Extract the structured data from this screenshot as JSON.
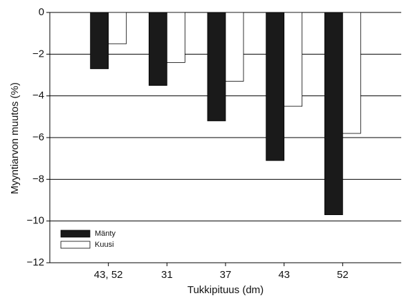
{
  "chart_data": {
    "type": "bar",
    "x_label": "Tukkipituus (dm)",
    "y_label": "Myyntiarvon muutos (%)",
    "categories": [
      "43, 52",
      "31",
      "37",
      "43",
      "52"
    ],
    "series": [
      {
        "name": "Mänty",
        "color": "#1a1a1a",
        "values": [
          -2.7,
          -3.5,
          -5.2,
          -7.1,
          -9.7
        ]
      },
      {
        "name": "Kuusi",
        "color": "#ffffff",
        "values": [
          -1.5,
          -2.4,
          -3.3,
          -4.5,
          -5.8
        ]
      }
    ],
    "ylim": [
      -12,
      0
    ],
    "yticks": [
      0,
      {
        "value": -2,
        "label": "−2"
      },
      {
        "value": -4,
        "label": "−4"
      },
      {
        "value": -6,
        "label": "−6"
      },
      {
        "value": -8,
        "label": "−8"
      },
      {
        "value": -10,
        "label": "−10"
      },
      {
        "value": -12,
        "label": "−12"
      }
    ],
    "grid": true,
    "legend": "lower left"
  }
}
